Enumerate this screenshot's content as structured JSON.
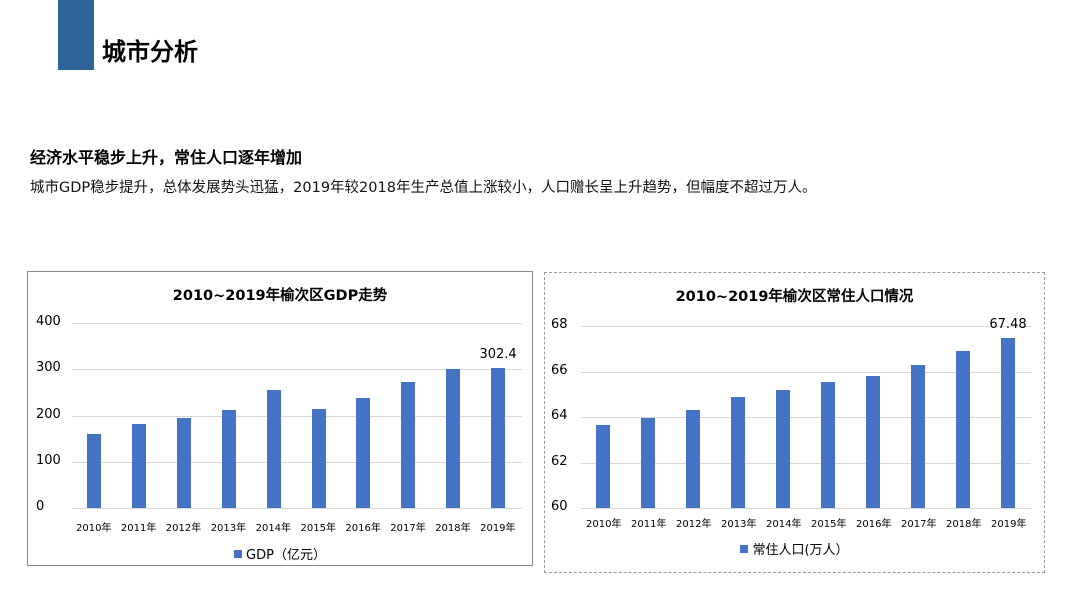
{
  "header": {
    "title": "城市分析",
    "accent_color": "#2f6599"
  },
  "summary": {
    "headline": "经济水平稳步上升，常住人口逐年增加",
    "description": "城市GDP稳步提升，总体发展势头迅猛，2019年较2018年生产总值上涨较小，人口赠长呈上升趋势，但幅度不超过万人。"
  },
  "chart_data": [
    {
      "type": "bar",
      "title": "2010~2019年榆次区GDP走势",
      "categories": [
        "2010年",
        "2011年",
        "2012年",
        "2013年",
        "2014年",
        "2015年",
        "2016年",
        "2017年",
        "2018年",
        "2019年"
      ],
      "series": [
        {
          "name": "GDP（亿元）",
          "values": [
            160,
            181,
            194,
            212,
            255,
            214,
            238,
            272,
            300,
            302.4
          ],
          "color": "#4472c4"
        }
      ],
      "yticks": [
        "400",
        "300",
        "200",
        "100",
        "0"
      ],
      "ylim": [
        0,
        400
      ],
      "data_label": "302.4",
      "xlabel": "",
      "ylabel": "",
      "legend_position": "bottom",
      "grid": true
    },
    {
      "type": "bar",
      "title": "2010~2019年榆次区常住人口情况",
      "categories": [
        "2010年",
        "2011年",
        "2012年",
        "2013年",
        "2014年",
        "2015年",
        "2016年",
        "2017年",
        "2018年",
        "2019年"
      ],
      "series": [
        {
          "name": "常住人口(万人）",
          "values": [
            63.65,
            63.95,
            64.3,
            64.9,
            65.2,
            65.55,
            65.8,
            66.3,
            66.9,
            67.48
          ],
          "color": "#4472c4"
        }
      ],
      "yticks": [
        "68",
        "66",
        "64",
        "62",
        "60"
      ],
      "ylim": [
        60,
        68
      ],
      "data_label": "67.48",
      "xlabel": "",
      "ylabel": "",
      "legend_position": "bottom",
      "grid": true
    }
  ]
}
